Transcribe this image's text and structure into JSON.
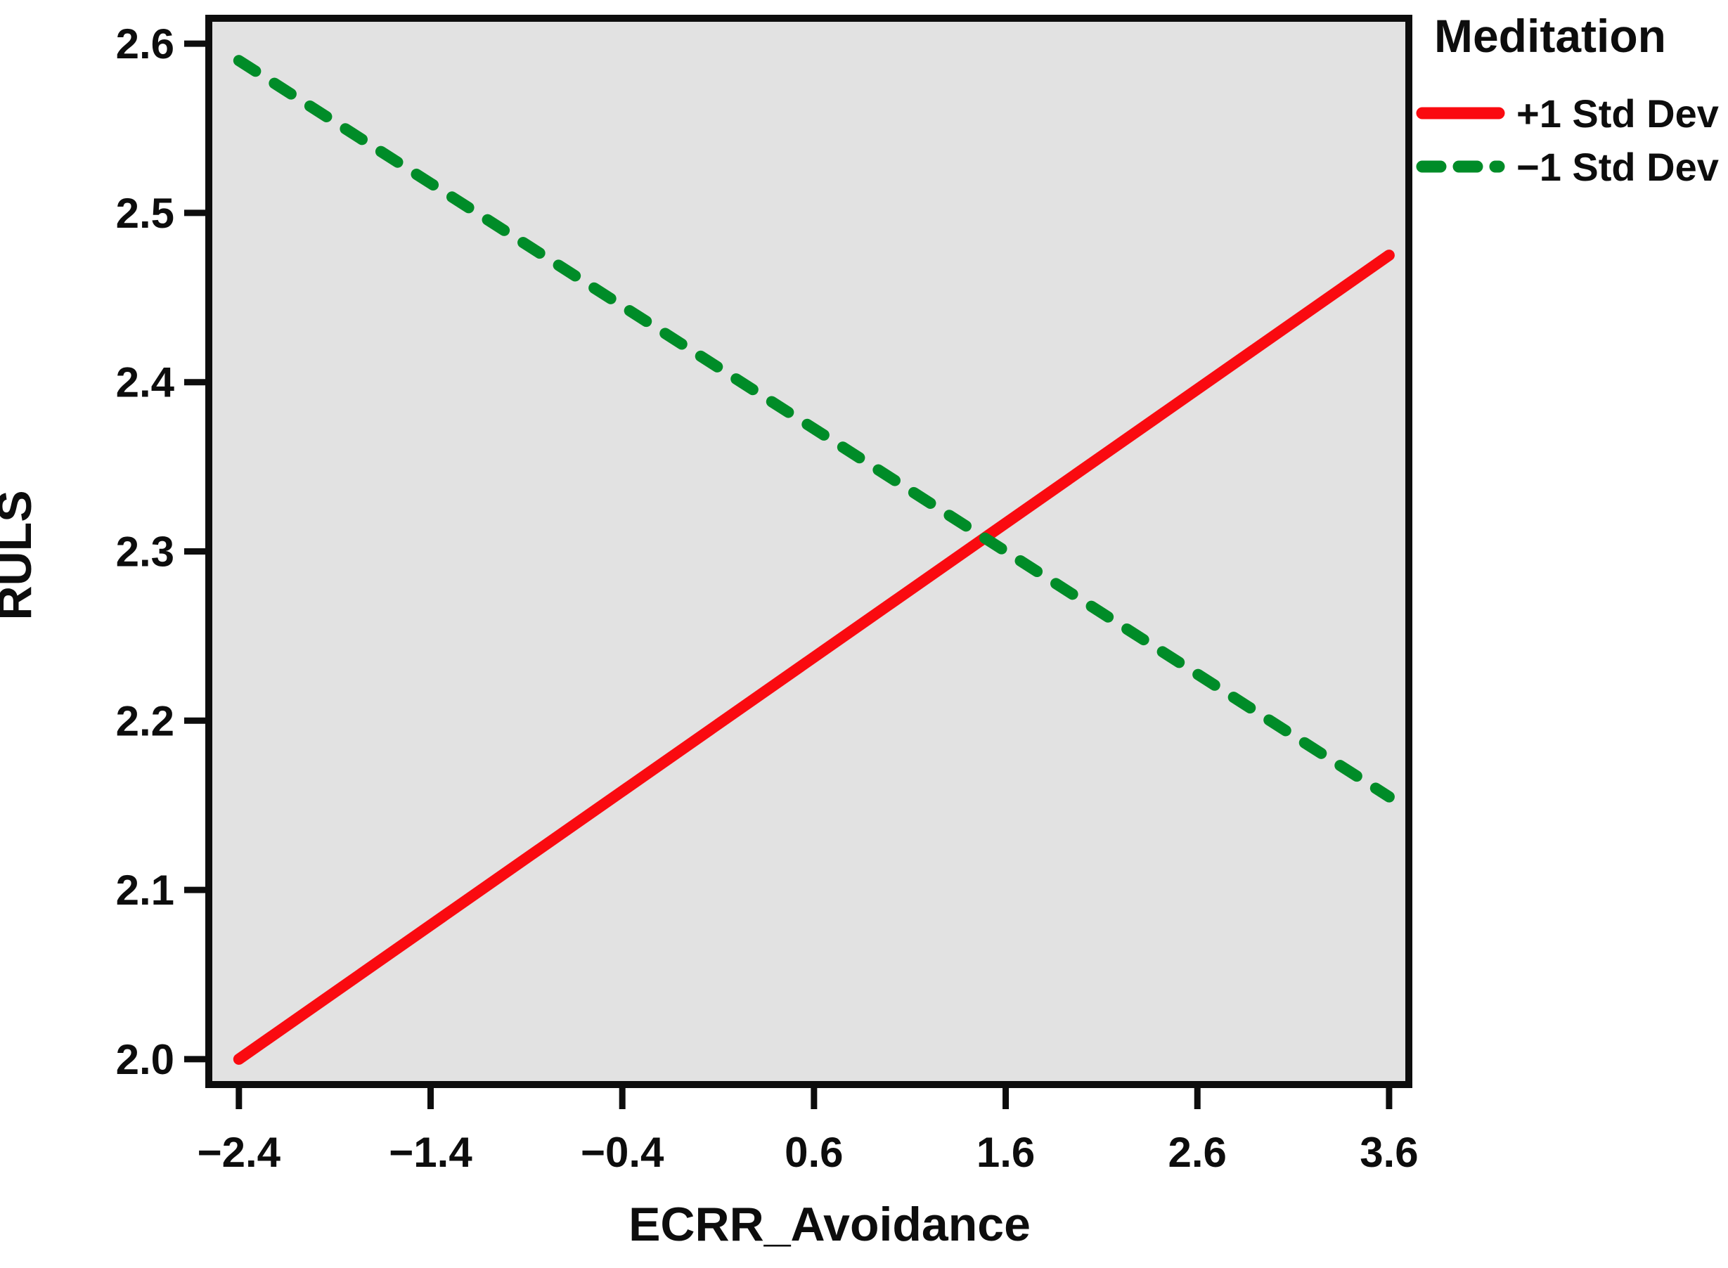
{
  "figure": {
    "background": "#ffffff",
    "text_color": "#0d0d0d"
  },
  "chart_data": {
    "type": "line",
    "title": "",
    "xlabel": "ECRR_Avoidance",
    "ylabel": "RULS",
    "plot_background": "#e2e2e2",
    "axis_color": "#0d0d0d",
    "grid": false,
    "xlim": [
      -2.557,
      3.703
    ],
    "ylim": [
      1.985,
      2.615
    ],
    "x_ticks": {
      "values": [
        -2.4,
        -1.4,
        -0.4,
        0.6,
        1.6,
        2.6,
        3.6
      ],
      "labels": [
        "−2.4",
        "−1.4",
        "−0.4",
        "0.6",
        "1.6",
        "2.6",
        "3.6"
      ]
    },
    "y_ticks": {
      "values": [
        2.0,
        2.1,
        2.2,
        2.3,
        2.4,
        2.5,
        2.6
      ],
      "labels": [
        "2.0",
        "2.1",
        "2.2",
        "2.3",
        "2.4",
        "2.5",
        "2.6"
      ]
    },
    "legend": {
      "title": "Meditation",
      "position": "top-right-outside",
      "entries": [
        {
          "label": "+1 Std Dev",
          "color": "#fa0a10",
          "style": "solid"
        },
        {
          "label": "−1 Std Dev",
          "color": "#008c28",
          "style": "dashed"
        }
      ]
    },
    "series": [
      {
        "name": "+1 Std Dev",
        "color": "#fa0a10",
        "style": "solid",
        "x": [
          -2.4,
          3.6
        ],
        "y": [
          2.0,
          2.475
        ]
      },
      {
        "name": "−1 Std Dev",
        "color": "#008c28",
        "style": "dashed",
        "x": [
          -2.4,
          3.6
        ],
        "y": [
          2.59,
          2.155
        ]
      }
    ]
  }
}
